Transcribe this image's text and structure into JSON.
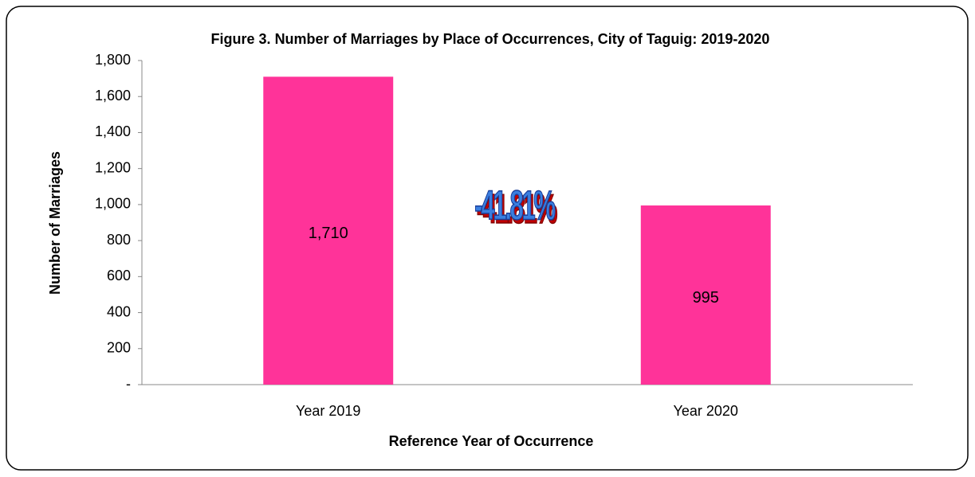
{
  "chart_data": {
    "type": "bar",
    "title": "Figure 3.  Number of Marriages by Place of Occurrences, City of Taguig:  2019-2020",
    "x_label": "Reference Year of Occurrence",
    "y_label": "Number of Marriages",
    "categories": [
      "Year 2019",
      "Year 2020"
    ],
    "values": [
      1710,
      995
    ],
    "value_labels": [
      "1,710",
      "995"
    ],
    "color": "#ff3399",
    "annotation": "-41.81%",
    "ylim": [
      0,
      1800
    ],
    "yticks": [
      {
        "value": 0,
        "label": "-"
      },
      200,
      400,
      600,
      800,
      {
        "value": 1000,
        "label": "1,000"
      },
      {
        "value": 1200,
        "label": "1,200"
      },
      {
        "value": 1400,
        "label": "1,400"
      },
      {
        "value": 1600,
        "label": "1,600"
      },
      {
        "value": 1800,
        "label": "1,800"
      }
    ],
    "grid": false
  }
}
